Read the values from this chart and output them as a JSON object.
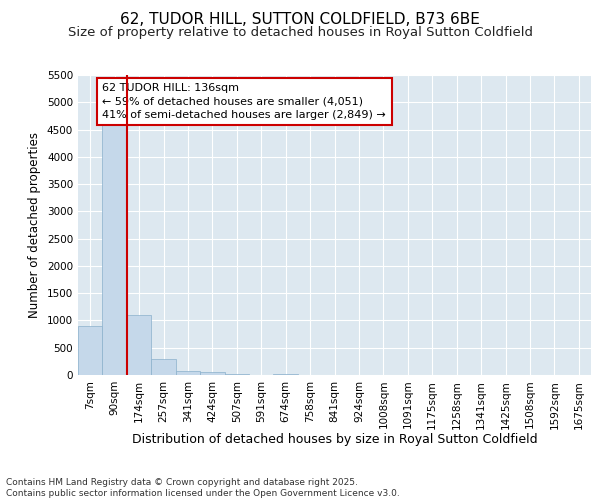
{
  "title": "62, TUDOR HILL, SUTTON COLDFIELD, B73 6BE",
  "subtitle": "Size of property relative to detached houses in Royal Sutton Coldfield",
  "xlabel": "Distribution of detached houses by size in Royal Sutton Coldfield",
  "ylabel": "Number of detached properties",
  "categories": [
    "7sqm",
    "90sqm",
    "174sqm",
    "257sqm",
    "341sqm",
    "424sqm",
    "507sqm",
    "591sqm",
    "674sqm",
    "758sqm",
    "841sqm",
    "924sqm",
    "1008sqm",
    "1091sqm",
    "1175sqm",
    "1258sqm",
    "1341sqm",
    "1425sqm",
    "1508sqm",
    "1592sqm",
    "1675sqm"
  ],
  "values": [
    900,
    4600,
    1100,
    300,
    75,
    50,
    25,
    0,
    25,
    0,
    0,
    0,
    0,
    0,
    0,
    0,
    0,
    0,
    0,
    0,
    0
  ],
  "bar_color": "#c5d8ea",
  "bar_edge_color": "#8ab0cc",
  "vline_x_index": 1.5,
  "vline_color": "#cc0000",
  "annotation_text": "62 TUDOR HILL: 136sqm\n← 59% of detached houses are smaller (4,051)\n41% of semi-detached houses are larger (2,849) →",
  "annotation_box_color": "#ffffff",
  "annotation_box_edge_color": "#cc0000",
  "ylim": [
    0,
    5500
  ],
  "yticks": [
    0,
    500,
    1000,
    1500,
    2000,
    2500,
    3000,
    3500,
    4000,
    4500,
    5000,
    5500
  ],
  "bg_color": "#ffffff",
  "plot_bg_color": "#dde8f0",
  "grid_color": "#ffffff",
  "footer_text": "Contains HM Land Registry data © Crown copyright and database right 2025.\nContains public sector information licensed under the Open Government Licence v3.0.",
  "title_fontsize": 11,
  "subtitle_fontsize": 9.5,
  "xlabel_fontsize": 9,
  "ylabel_fontsize": 8.5,
  "tick_fontsize": 7.5,
  "annotation_fontsize": 8,
  "footer_fontsize": 6.5
}
